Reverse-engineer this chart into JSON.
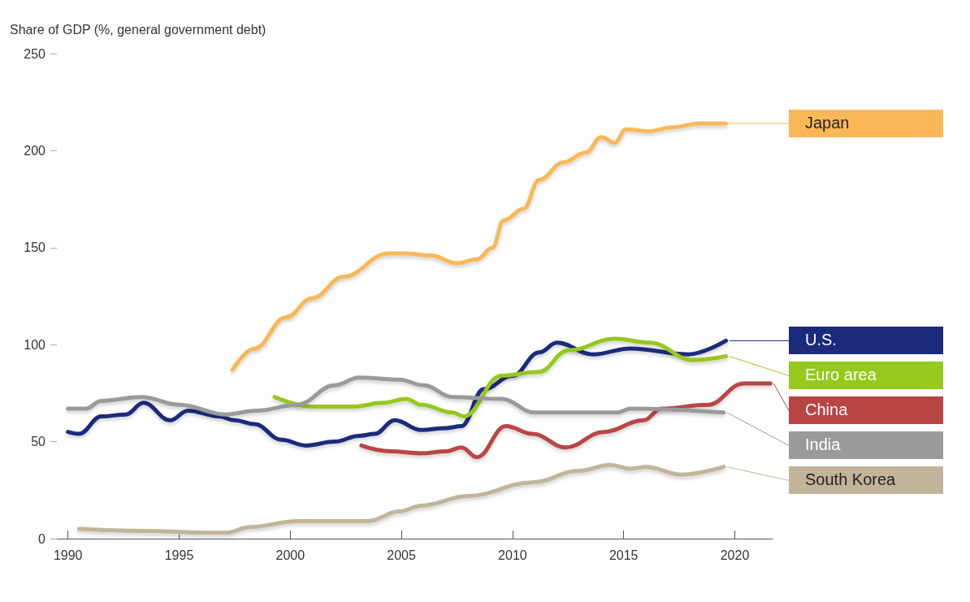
{
  "chart_data": {
    "type": "line",
    "ylabel": "Share of GDP (%, general government debt)",
    "xlim": [
      1989.5,
      2021.7
    ],
    "xticks": [
      1990,
      1995,
      2000,
      2005,
      2010,
      2015,
      2020
    ],
    "ylim": [
      0,
      250
    ],
    "yticks": [
      0,
      50,
      100,
      150,
      200,
      250
    ],
    "grid": false,
    "legend": "right",
    "marker": "none",
    "line_style": "solid",
    "series": [
      {
        "name": "Japan",
        "color": "#f9b858",
        "x": [
          1997.4,
          1998.4,
          1999.8,
          2001,
          2002.4,
          2004.4,
          2005.2,
          2006.3,
          2007.5,
          2008.4,
          2009.1,
          2009.6,
          2010.5,
          2011.2,
          2012.3,
          2013.3,
          2014,
          2014.6,
          2015.1,
          2016.1,
          2017.2,
          2018.4,
          2019.6
        ],
        "values": [
          87,
          98,
          114,
          124,
          135,
          147,
          147,
          146,
          142,
          144,
          150,
          164,
          170,
          185,
          194,
          199,
          207,
          204,
          211,
          210,
          212,
          214,
          214
        ]
      },
      {
        "name": "U.S.",
        "color": "#1b2a7b",
        "x": [
          1990,
          1990.5,
          1991.5,
          1992.6,
          1993.4,
          1994.6,
          1995.4,
          1996.8,
          1997.5,
          1998.4,
          1999.6,
          2000.7,
          2002,
          2003.1,
          2003.8,
          2004.7,
          2005.9,
          2007,
          2007.7,
          2008.7,
          2010,
          2011.2,
          2012,
          2013.6,
          2015.3,
          2017.9,
          2019.6
        ],
        "values": [
          55,
          54,
          63,
          64,
          70,
          61,
          66,
          63,
          61,
          59,
          51,
          48,
          50,
          53,
          54,
          61,
          56,
          57,
          58,
          77,
          84,
          96,
          101,
          95,
          98,
          95,
          102
        ]
      },
      {
        "name": "Euro area",
        "color": "#96c81e",
        "x": [
          1999.3,
          2001,
          2002.8,
          2004.2,
          2005.2,
          2005.9,
          2007.3,
          2007.8,
          2009.5,
          2011.2,
          2012.5,
          2014.6,
          2016.2,
          2018.1,
          2019.6
        ],
        "values": [
          73,
          68,
          68,
          70,
          72,
          69,
          65,
          63,
          84,
          86,
          97,
          103,
          101,
          92,
          94
        ]
      },
      {
        "name": "China",
        "color": "#b94444",
        "x": [
          2003.2,
          2004.5,
          2005.9,
          2007,
          2007.7,
          2008.4,
          2009.7,
          2010.9,
          2012.4,
          2014.1,
          2015.9,
          2016.7,
          2018.8,
          2020.4,
          2021.6
        ],
        "values": [
          48,
          45,
          44,
          45,
          47,
          42,
          58,
          54,
          47,
          55,
          61,
          67,
          69,
          80,
          80
        ]
      },
      {
        "name": "India",
        "color": "#9a9a9a",
        "x": [
          1990,
          1990.8,
          1991.5,
          1993.3,
          1995,
          1997.1,
          1998.5,
          2000.3,
          2002,
          2003.1,
          2004.9,
          2006,
          2007.3,
          2009.5,
          2011,
          2014.7,
          2015.3,
          2019.5
        ],
        "values": [
          67,
          67,
          71,
          73,
          69,
          64,
          66,
          69,
          79,
          83,
          82,
          79,
          73,
          72,
          65,
          65,
          67,
          65
        ]
      },
      {
        "name": "South Korea",
        "color": "#c2b49a",
        "x": [
          1990.5,
          1993.3,
          1996.8,
          1997.1,
          1998.2,
          2000.3,
          2002.4,
          2003.5,
          2004.9,
          2005.9,
          2008,
          2010.9,
          2013,
          2014.4,
          2015.3,
          2016,
          2017.6,
          2019.5
        ],
        "values": [
          5,
          4,
          3,
          3,
          6,
          9,
          9,
          9,
          14,
          17,
          22,
          29,
          35,
          38,
          36,
          37,
          33,
          37
        ]
      }
    ]
  }
}
